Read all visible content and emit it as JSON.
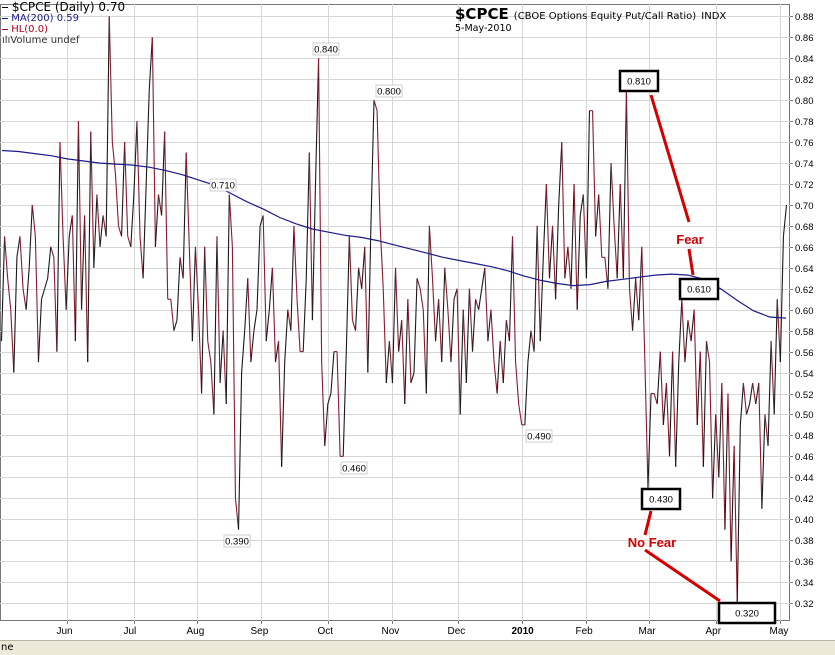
{
  "legend": {
    "main": "$CPCE (Daily) 0.70",
    "ma": "MA(200) 0.59",
    "hl": "HL(0.0)",
    "volume": "Volume undef"
  },
  "title": {
    "symbol": "$CPCE",
    "description": "(CBOE Options Equity Put/Call Ratio)",
    "exchange": "INDX",
    "date": "5-May-2010"
  },
  "status_text": "ne",
  "colors": {
    "price": "#8b1a2e",
    "price_dark": "#1a1a1a",
    "ma": "#1a1a8c",
    "annotation": "#d40000",
    "grid": "#d6d6d6"
  },
  "chart_data": {
    "type": "line",
    "ylim": [
      0.3,
      0.9
    ],
    "yticks": [
      "0.32",
      "0.34",
      "0.36",
      "0.38",
      "0.40",
      "0.42",
      "0.44",
      "0.46",
      "0.48",
      "0.50",
      "0.52",
      "0.54",
      "0.56",
      "0.58",
      "0.60",
      "0.62",
      "0.64",
      "0.66",
      "0.68",
      "0.70",
      "0.72",
      "0.74",
      "0.76",
      "0.78",
      "0.80",
      "0.82",
      "0.84",
      "0.86",
      "0.88"
    ],
    "xticks": [
      {
        "label": "Jun",
        "x": 22,
        "bold": false
      },
      {
        "label": "Jul",
        "x": 44,
        "bold": false
      },
      {
        "label": "Aug",
        "x": 65,
        "bold": false
      },
      {
        "label": "Sep",
        "x": 86,
        "bold": false
      },
      {
        "label": "Oct",
        "x": 108,
        "bold": false
      },
      {
        "label": "Nov",
        "x": 129,
        "bold": false
      },
      {
        "label": "Dec",
        "x": 151,
        "bold": false
      },
      {
        "label": "2010",
        "x": 172,
        "bold": true
      },
      {
        "label": "Feb",
        "x": 193,
        "bold": false
      },
      {
        "label": "Mar",
        "x": 214,
        "bold": false
      },
      {
        "label": "Apr",
        "x": 236,
        "bold": false
      },
      {
        "label": "May",
        "x": 257,
        "bold": false
      }
    ],
    "series": [
      {
        "name": "$CPCE",
        "values": [
          0.57,
          0.67,
          0.63,
          0.6,
          0.54,
          0.65,
          0.67,
          0.62,
          0.6,
          0.64,
          0.7,
          0.67,
          0.55,
          0.61,
          0.62,
          0.63,
          0.66,
          0.65,
          0.56,
          0.76,
          0.67,
          0.6,
          0.67,
          0.69,
          0.57,
          0.78,
          0.6,
          0.69,
          0.55,
          0.77,
          0.64,
          0.71,
          0.66,
          0.69,
          0.67,
          0.88,
          0.76,
          0.73,
          0.68,
          0.67,
          0.76,
          0.67,
          0.66,
          0.71,
          0.78,
          0.67,
          0.63,
          0.72,
          0.81,
          0.86,
          0.66,
          0.71,
          0.69,
          0.77,
          0.61,
          0.61,
          0.58,
          0.59,
          0.65,
          0.63,
          0.75,
          0.66,
          0.57,
          0.66,
          0.6,
          0.52,
          0.66,
          0.57,
          0.55,
          0.5,
          0.67,
          0.53,
          0.58,
          0.51,
          0.71,
          0.66,
          0.42,
          0.39,
          0.54,
          0.58,
          0.63,
          0.55,
          0.58,
          0.6,
          0.68,
          0.69,
          0.57,
          0.6,
          0.64,
          0.55,
          0.57,
          0.45,
          0.55,
          0.6,
          0.58,
          0.68,
          0.61,
          0.56,
          0.56,
          0.63,
          0.75,
          0.59,
          0.72,
          0.84,
          0.55,
          0.47,
          0.51,
          0.52,
          0.56,
          0.56,
          0.46,
          0.46,
          0.56,
          0.67,
          0.59,
          0.58,
          0.64,
          0.62,
          0.66,
          0.54,
          0.68,
          0.8,
          0.79,
          0.68,
          0.62,
          0.53,
          0.57,
          0.53,
          0.64,
          0.56,
          0.59,
          0.51,
          0.61,
          0.53,
          0.54,
          0.63,
          0.62,
          0.6,
          0.52,
          0.68,
          0.63,
          0.57,
          0.61,
          0.55,
          0.64,
          0.6,
          0.55,
          0.61,
          0.62,
          0.5,
          0.6,
          0.53,
          0.62,
          0.56,
          0.61,
          0.6,
          0.62,
          0.64,
          0.57,
          0.6,
          0.55,
          0.52,
          0.57,
          0.53,
          0.59,
          0.57,
          0.67,
          0.55,
          0.51,
          0.49,
          0.49,
          0.55,
          0.58,
          0.56,
          0.68,
          0.57,
          0.65,
          0.72,
          0.63,
          0.68,
          0.61,
          0.7,
          0.76,
          0.63,
          0.66,
          0.62,
          0.72,
          0.6,
          0.69,
          0.71,
          0.63,
          0.79,
          0.79,
          0.67,
          0.71,
          0.65,
          0.65,
          0.62,
          0.74,
          0.68,
          0.63,
          0.72,
          0.63,
          0.81,
          0.62,
          0.58,
          0.63,
          0.59,
          0.66,
          0.55,
          0.43,
          0.52,
          0.52,
          0.51,
          0.56,
          0.49,
          0.53,
          0.46,
          0.56,
          0.45,
          0.55,
          0.61,
          0.55,
          0.59,
          0.57,
          0.6,
          0.49,
          0.56,
          0.45,
          0.57,
          0.55,
          0.42,
          0.5,
          0.44,
          0.53,
          0.39,
          0.52,
          0.36,
          0.47,
          0.32,
          0.49,
          0.53,
          0.5,
          0.51,
          0.53,
          0.51,
          0.53,
          0.41,
          0.5,
          0.47,
          0.57,
          0.5,
          0.61,
          0.55,
          0.67,
          0.7
        ]
      },
      {
        "name": "MA(200)",
        "values": [
          0.752,
          0.751,
          0.749,
          0.747,
          0.744,
          0.742,
          0.74,
          0.739,
          0.738,
          0.736,
          0.733,
          0.729,
          0.724,
          0.719,
          0.711,
          0.703,
          0.696,
          0.688,
          0.682,
          0.677,
          0.674,
          0.671,
          0.669,
          0.666,
          0.662,
          0.658,
          0.654,
          0.65,
          0.647,
          0.644,
          0.641,
          0.637,
          0.632,
          0.628,
          0.625,
          0.623,
          0.624,
          0.627,
          0.629,
          0.631,
          0.633,
          0.634,
          0.633,
          0.629,
          0.62,
          0.609,
          0.599,
          0.593,
          0.592
        ]
      }
    ],
    "series_hl": [
      {
        "label": "0.390",
        "value": 0.39
      },
      {
        "label": "0.710",
        "value": 0.71
      },
      {
        "label": "0.840",
        "value": 0.84
      },
      {
        "label": "0.800",
        "value": 0.8
      },
      {
        "label": "0.460",
        "value": 0.46
      },
      {
        "label": "0.490",
        "value": 0.49
      },
      {
        "label": "0.810",
        "value": 0.81
      },
      {
        "label": "0.610",
        "value": 0.61
      },
      {
        "label": "0.430",
        "value": 0.43
      },
      {
        "label": "0.320",
        "value": 0.32
      }
    ],
    "annotations": [
      {
        "text": "Fear",
        "color": "#d40000"
      },
      {
        "text": "No  Fear",
        "color": "#d40000"
      }
    ]
  }
}
